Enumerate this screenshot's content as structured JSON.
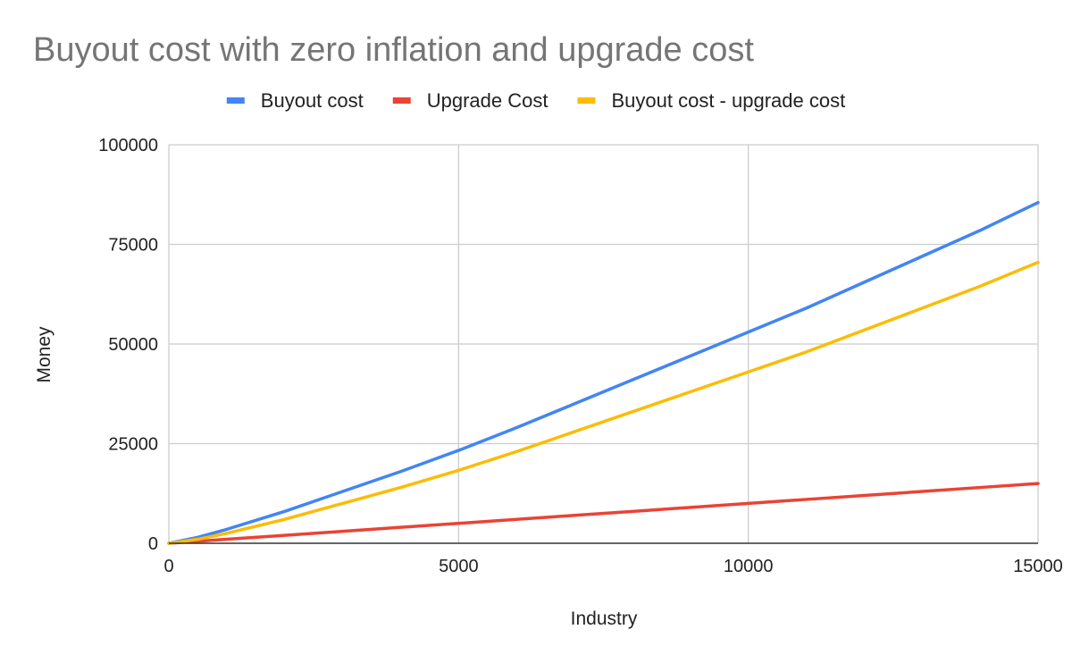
{
  "chart_data": {
    "type": "line",
    "title": "Buyout cost with zero inflation and upgrade cost",
    "xlabel": "Industry",
    "ylabel": "Money",
    "xlim": [
      0,
      15000
    ],
    "ylim": [
      0,
      100000
    ],
    "x_ticks": [
      "0",
      "5000",
      "10000",
      "15000"
    ],
    "y_ticks": [
      "0",
      "25000",
      "50000",
      "75000",
      "100000"
    ],
    "x_tick_values": [
      0,
      5000,
      10000,
      15000
    ],
    "y_tick_values": [
      0,
      25000,
      50000,
      75000,
      100000
    ],
    "grid": true,
    "legend_position": "top",
    "x": [
      0,
      500,
      1000,
      2000,
      3000,
      4000,
      5000,
      6000,
      7000,
      8000,
      9000,
      10000,
      11000,
      12000,
      13000,
      14000,
      15000
    ],
    "series": [
      {
        "name": "Buyout cost",
        "color": "#4285F4",
        "values": [
          0,
          1500,
          3500,
          8000,
          13000,
          18000,
          23300,
          29000,
          35000,
          41000,
          47000,
          53000,
          59000,
          65500,
          72000,
          78500,
          85500
        ]
      },
      {
        "name": "Upgrade Cost",
        "color": "#EA4335",
        "values": [
          0,
          500,
          1000,
          2000,
          3000,
          4000,
          5000,
          6000,
          7000,
          8000,
          9000,
          10000,
          11000,
          12000,
          13000,
          14000,
          15000
        ]
      },
      {
        "name": "Buyout cost - upgrade cost",
        "color": "#FBBC04",
        "values": [
          0,
          1000,
          2500,
          6000,
          10000,
          14000,
          18300,
          23000,
          28000,
          33000,
          38000,
          43000,
          48000,
          53500,
          59000,
          64500,
          70500
        ]
      }
    ]
  }
}
